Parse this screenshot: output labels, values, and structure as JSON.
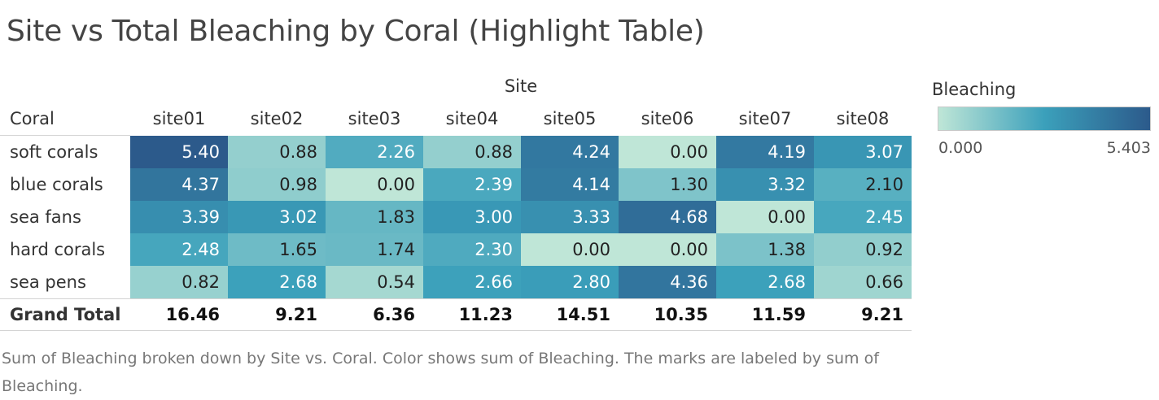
{
  "title": "Site vs Total Bleaching by Coral (Highlight Table)",
  "caption": "Sum of Bleaching broken down by Site vs. Coral.  Color shows sum of Bleaching.  The marks are labeled by sum of Bleaching.",
  "colors": {
    "low": "#bfe6d7",
    "mid": "#3ba0bb",
    "high": "#2c5a8b"
  },
  "chart_data": {
    "type": "heatmap",
    "title": "Site vs Total Bleaching by Coral (Highlight Table)",
    "column_header": "Site",
    "row_header": "Coral",
    "columns": [
      "site01",
      "site02",
      "site03",
      "site04",
      "site05",
      "site06",
      "site07",
      "site08"
    ],
    "rows": [
      "soft corals",
      "blue corals",
      "sea fans",
      "hard corals",
      "sea pens"
    ],
    "values": [
      [
        "5.40",
        "0.88",
        "2.26",
        "0.88",
        "4.24",
        "0.00",
        "4.19",
        "3.07"
      ],
      [
        "4.37",
        "0.98",
        "0.00",
        "2.39",
        "4.14",
        "1.30",
        "3.32",
        "2.10"
      ],
      [
        "3.39",
        "3.02",
        "1.83",
        "3.00",
        "3.33",
        "4.68",
        "0.00",
        "2.45"
      ],
      [
        "2.48",
        "1.65",
        "1.74",
        "2.30",
        "0.00",
        "0.00",
        "1.38",
        "0.92"
      ],
      [
        "0.82",
        "2.68",
        "0.54",
        "2.66",
        "2.80",
        "4.36",
        "2.68",
        "0.66"
      ]
    ],
    "grand_total_label": "Grand Total",
    "grand_totals": [
      "16.46",
      "9.21",
      "6.36",
      "11.23",
      "14.51",
      "10.35",
      "11.59",
      "9.21"
    ],
    "legend": {
      "title": "Bleaching",
      "min": 0.0,
      "max": 5.403,
      "min_label": "0.000",
      "max_label": "5.403",
      "placement": "right"
    }
  }
}
